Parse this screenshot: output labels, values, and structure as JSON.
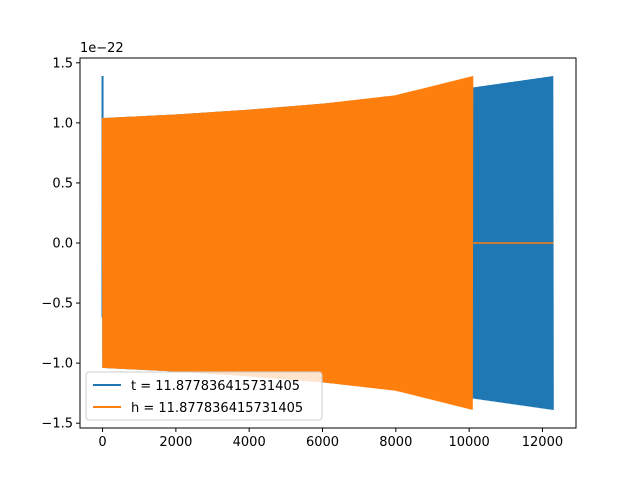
{
  "chart_data": {
    "type": "line",
    "title": "",
    "xlabel": "",
    "ylabel": "",
    "scale_note": "1e−22",
    "xlim": [
      -615,
      12915
    ],
    "ylim": [
      -1.54,
      1.54
    ],
    "xticks": [
      0,
      2000,
      4000,
      6000,
      8000,
      10000,
      12000
    ],
    "xtick_labels": [
      "0",
      "2000",
      "4000",
      "6000",
      "8000",
      "10000",
      "12000"
    ],
    "yticks": [
      -1.5,
      -1.0,
      -0.5,
      0.0,
      0.5,
      1.0,
      1.5
    ],
    "ytick_labels": [
      "−1.5",
      "−1.0",
      "−0.5",
      "0.0",
      "0.5",
      "1.0",
      "1.5"
    ],
    "grid": false,
    "legend_position": "lower-left",
    "series": [
      {
        "name": "t = 11.877836415731405",
        "color": "#1f77b4",
        "x_start": 0,
        "x_end": 12300,
        "spike_value": 1.39,
        "envelope": [
          {
            "x": 0,
            "amp": 1.04
          },
          {
            "x": 2000,
            "amp": 1.07
          },
          {
            "x": 4000,
            "amp": 1.11
          },
          {
            "x": 6000,
            "amp": 1.16
          },
          {
            "x": 8000,
            "amp": 1.22
          },
          {
            "x": 10000,
            "amp": 1.29
          },
          {
            "x": 12300,
            "amp": 1.39
          }
        ]
      },
      {
        "name": "h = 11.877836415731405",
        "color": "#ff7f0e",
        "x_start": 0,
        "x_end": 10100,
        "flat_after_end": 0.0,
        "flat_until": 12300,
        "envelope": [
          {
            "x": 0,
            "amp": 1.04
          },
          {
            "x": 2000,
            "amp": 1.07
          },
          {
            "x": 4000,
            "amp": 1.11
          },
          {
            "x": 6000,
            "amp": 1.16
          },
          {
            "x": 8000,
            "amp": 1.23
          },
          {
            "x": 10100,
            "amp": 1.39
          }
        ]
      }
    ]
  }
}
